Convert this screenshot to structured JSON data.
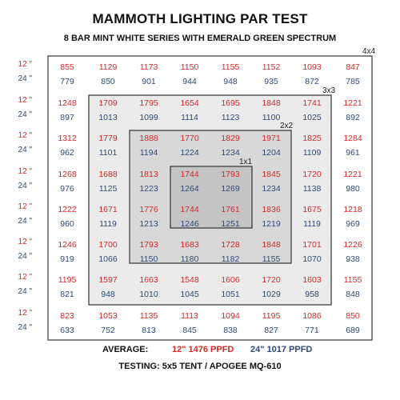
{
  "chart_data": {
    "type": "heatmap",
    "title": "MAMMOTH LIGHTING PAR TEST",
    "subtitle": "8 BAR MINT WHITE SERIES WITH EMERALD GREEN SPECTRUM",
    "row_labels": {
      "top": "12 \"",
      "bottom": "24 \""
    },
    "zone_labels": [
      "4x4",
      "3x3",
      "2x2",
      "1x1"
    ],
    "values_12in": [
      [
        855,
        1129,
        1173,
        1150,
        1155,
        1152,
        1093,
        847
      ],
      [
        1248,
        1709,
        1795,
        1654,
        1695,
        1848,
        1741,
        1221
      ],
      [
        1312,
        1779,
        1888,
        1770,
        1829,
        1971,
        1825,
        1284
      ],
      [
        1268,
        1688,
        1813,
        1744,
        1793,
        1845,
        1720,
        1221
      ],
      [
        1222,
        1671,
        1776,
        1744,
        1761,
        1836,
        1675,
        1218
      ],
      [
        1246,
        1700,
        1793,
        1683,
        1728,
        1848,
        1701,
        1226
      ],
      [
        1195,
        1597,
        1663,
        1548,
        1606,
        1720,
        1603,
        1155
      ],
      [
        823,
        1053,
        1135,
        1113,
        1094,
        1195,
        1086,
        850
      ]
    ],
    "values_24in": [
      [
        779,
        850,
        901,
        944,
        948,
        935,
        872,
        785
      ],
      [
        897,
        1013,
        1099,
        1114,
        1123,
        1100,
        1025,
        892
      ],
      [
        962,
        1101,
        1194,
        1224,
        1234,
        1204,
        1109,
        961
      ],
      [
        976,
        1125,
        1223,
        1264,
        1269,
        1234,
        1138,
        980
      ],
      [
        960,
        1119,
        1213,
        1246,
        1251,
        1219,
        1119,
        969
      ],
      [
        919,
        1066,
        1150,
        1180,
        1182,
        1155,
        1070,
        938
      ],
      [
        821,
        948,
        1010,
        1045,
        1051,
        1029,
        958,
        848
      ],
      [
        633,
        752,
        813,
        845,
        838,
        827,
        771,
        689
      ]
    ],
    "colors": {
      "top_value": "#d42a2a",
      "bottom_value": "#2d4a78",
      "zone_3x3_fill": "#ebebeb",
      "zone_2x2_fill": "#d8d8d8",
      "zone_1x1_fill": "#c4c4c4",
      "border": "#333333"
    }
  },
  "footer": {
    "average_label": "AVERAGE:",
    "avg_12": "12\" 1476 PPFD",
    "avg_24": "24\" 1017 PPFD",
    "testing": "TESTING: 5x5 TENT / APOGEE MQ-610"
  }
}
